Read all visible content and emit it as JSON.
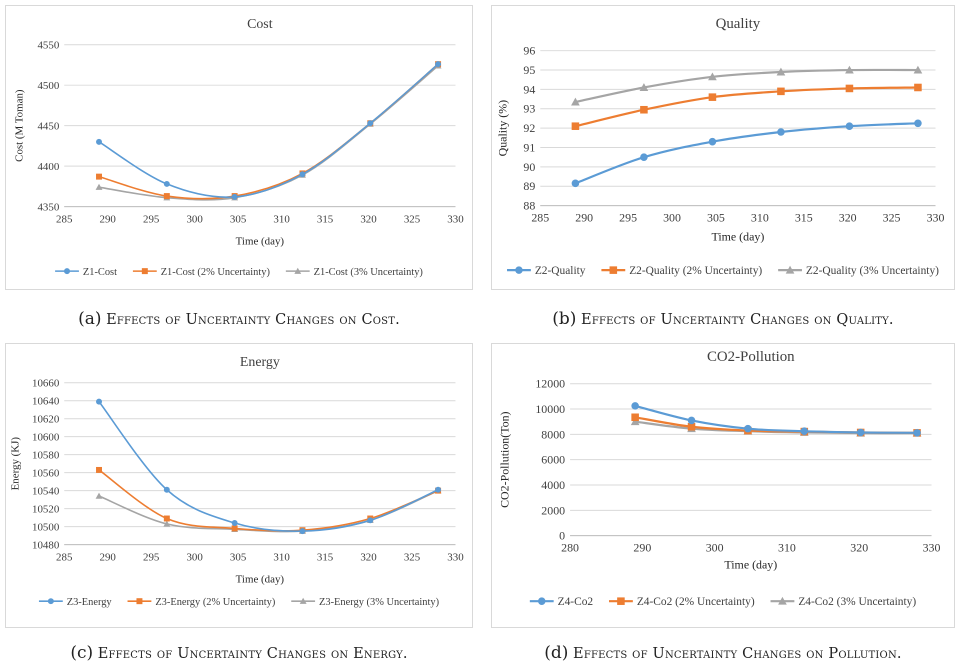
{
  "captions": [
    {
      "letter": "(a)",
      "text": "Effects of  Uncertainty  Changes on Cost."
    },
    {
      "letter": "(b)",
      "text": "Effects of Uncertainty Changes on Quality."
    },
    {
      "letter": "(c)",
      "text": "Effects of Uncertainty Changes on Energy."
    },
    {
      "letter": "(d)",
      "text": "Effects of Uncertainty Changes on Pollution."
    }
  ],
  "colors": {
    "blue": "#5b9bd5",
    "orange": "#ed7d31",
    "gray": "#a5a5a5"
  },
  "chart_data": [
    {
      "type": "line",
      "title": "Cost",
      "xlabel": "Time (day)",
      "ylabel": "Cost (M Toman)",
      "xlim": [
        285,
        330
      ],
      "ylim": [
        4350,
        4550
      ],
      "xticks": [
        285,
        290,
        295,
        300,
        305,
        310,
        315,
        320,
        325,
        330
      ],
      "yticks": [
        4350,
        4400,
        4450,
        4500,
        4550
      ],
      "grid": true,
      "legend": "bottom",
      "marker": "small",
      "series": [
        {
          "name": "Z1-Cost",
          "marker": "circle",
          "color": "#5b9bd5",
          "x": [
            289,
            296.8,
            304.6,
            312.4,
            320.2,
            328
          ],
          "y": [
            4430,
            4378,
            4362,
            4390,
            4453,
            4526
          ]
        },
        {
          "name": "Z1-Cost (2% Uncertainty)",
          "marker": "square",
          "color": "#ed7d31",
          "x": [
            289,
            296.8,
            304.6,
            312.4,
            320.2,
            328
          ],
          "y": [
            4387,
            4363,
            4363,
            4391,
            4453,
            4526
          ]
        },
        {
          "name": "Z1-Cost (3% Uncertainty)",
          "marker": "triangle",
          "color": "#a5a5a5",
          "x": [
            289,
            296.8,
            304.6,
            312.4,
            320.2,
            328
          ],
          "y": [
            4374,
            4361,
            4361,
            4389,
            4452,
            4524
          ]
        }
      ]
    },
    {
      "type": "line",
      "title": "Quality",
      "xlabel": "Time (day)",
      "ylabel": "Quality (%)",
      "xlim": [
        285,
        330
      ],
      "ylim": [
        88,
        96
      ],
      "xticks": [
        285,
        290,
        295,
        300,
        305,
        310,
        315,
        320,
        325,
        330
      ],
      "yticks": [
        88,
        89,
        90,
        91,
        92,
        93,
        94,
        95,
        96
      ],
      "grid": true,
      "legend": "bottom",
      "marker": "large",
      "series": [
        {
          "name": "Z2-Quality",
          "marker": "circle",
          "color": "#5b9bd5",
          "x": [
            289,
            296.8,
            304.6,
            312.4,
            320.2,
            328
          ],
          "y": [
            89.15,
            90.5,
            91.3,
            91.8,
            92.1,
            92.25
          ]
        },
        {
          "name": "Z2-Quality (2% Uncertainty)",
          "marker": "square",
          "color": "#ed7d31",
          "x": [
            289,
            296.8,
            304.6,
            312.4,
            320.2,
            328
          ],
          "y": [
            92.1,
            92.95,
            93.6,
            93.9,
            94.05,
            94.1
          ]
        },
        {
          "name": "Z2-Quality (3% Uncertainty)",
          "marker": "triangle",
          "color": "#a5a5a5",
          "x": [
            289,
            296.8,
            304.6,
            312.4,
            320.2,
            328
          ],
          "y": [
            93.35,
            94.1,
            94.65,
            94.9,
            95.0,
            95.0
          ]
        }
      ]
    },
    {
      "type": "line",
      "title": "Energy",
      "xlabel": "Time (day)",
      "ylabel": "Energy (KJ)",
      "xlim": [
        285,
        330
      ],
      "ylim": [
        10480,
        10660
      ],
      "xticks": [
        285,
        290,
        295,
        300,
        305,
        310,
        315,
        320,
        325,
        330
      ],
      "yticks": [
        10480,
        10500,
        10520,
        10540,
        10560,
        10580,
        10600,
        10620,
        10640,
        10660
      ],
      "grid": true,
      "legend": "bottom",
      "marker": "small",
      "series": [
        {
          "name": "Z3-Energy",
          "marker": "circle",
          "color": "#5b9bd5",
          "x": [
            289,
            296.8,
            304.6,
            312.4,
            320.2,
            328
          ],
          "y": [
            10639,
            10541,
            10504,
            10495,
            10507,
            10541
          ]
        },
        {
          "name": "Z3-Energy (2% Uncertainty)",
          "marker": "square",
          "color": "#ed7d31",
          "x": [
            289,
            296.8,
            304.6,
            312.4,
            320.2,
            328
          ],
          "y": [
            10563,
            10509,
            10498,
            10496,
            10509,
            10540
          ]
        },
        {
          "name": "Z3-Energy (3% Uncertainty)",
          "marker": "triangle",
          "color": "#a5a5a5",
          "x": [
            289,
            296.8,
            304.6,
            312.4,
            320.2,
            328
          ],
          "y": [
            10534,
            10503,
            10497,
            10495,
            10507,
            10540
          ]
        }
      ]
    },
    {
      "type": "line",
      "title": "CO2-Pollution",
      "xlabel": "Time (day)",
      "ylabel": "CO2-Pollution(Ton)",
      "xlim": [
        280,
        330
      ],
      "ylim": [
        0,
        12000
      ],
      "xticks": [
        280,
        290,
        300,
        310,
        320,
        330
      ],
      "yticks": [
        0,
        2000,
        4000,
        6000,
        8000,
        10000,
        12000
      ],
      "grid": true,
      "legend": "bottom",
      "marker": "large",
      "series": [
        {
          "name": "Z4-Co2",
          "marker": "circle",
          "color": "#5b9bd5",
          "x": [
            289,
            296.8,
            304.6,
            312.4,
            320.2,
            328
          ],
          "y": [
            10250,
            9100,
            8450,
            8250,
            8150,
            8120
          ]
        },
        {
          "name": "Z4-Co2 (2% Uncertainty)",
          "marker": "square",
          "color": "#ed7d31",
          "x": [
            289,
            296.8,
            304.6,
            312.4,
            320.2,
            328
          ],
          "y": [
            9350,
            8600,
            8300,
            8220,
            8150,
            8120
          ]
        },
        {
          "name": "Z4-Co2 (3% Uncertainty)",
          "marker": "triangle",
          "color": "#a5a5a5",
          "x": [
            289,
            296.8,
            304.6,
            312.4,
            320.2,
            328
          ],
          "y": [
            9000,
            8450,
            8250,
            8150,
            8100,
            8100
          ]
        }
      ]
    }
  ]
}
